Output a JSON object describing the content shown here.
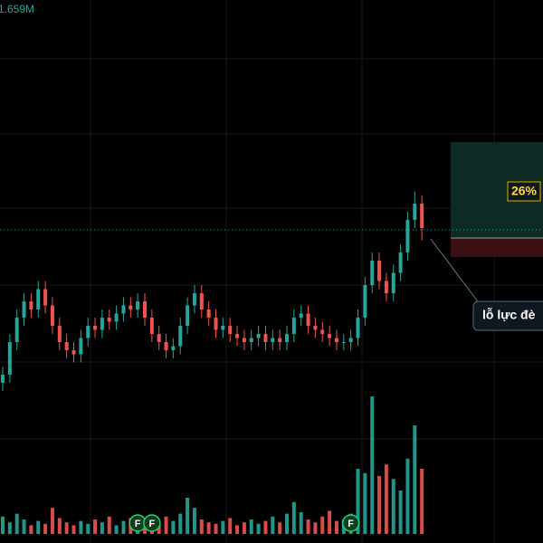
{
  "legend_value": "1.659M",
  "chart_data": {
    "type": "candlestick",
    "open": [
      6,
      8,
      16,
      22,
      26,
      24,
      29,
      25,
      20,
      16,
      14,
      13,
      17,
      20,
      19,
      22,
      21,
      23,
      25,
      24,
      26,
      22,
      18,
      16,
      14,
      15,
      20,
      25,
      28,
      24,
      22,
      19,
      20,
      18,
      17,
      16,
      17,
      18,
      16,
      17,
      16,
      18,
      22,
      23,
      20,
      19,
      18,
      17,
      16,
      16,
      17,
      22,
      30,
      36,
      31,
      28,
      33,
      38,
      46,
      50
    ],
    "high": [
      10,
      18,
      24,
      28,
      28,
      31,
      31,
      27,
      22,
      18,
      16,
      19,
      22,
      22,
      24,
      24,
      25,
      27,
      27,
      28,
      28,
      24,
      20,
      18,
      17,
      22,
      27,
      30,
      30,
      26,
      24,
      22,
      22,
      20,
      19,
      19,
      20,
      20,
      19,
      19,
      20,
      24,
      25,
      25,
      22,
      21,
      20,
      19,
      18,
      19,
      24,
      32,
      38,
      38,
      33,
      35,
      40,
      48,
      53,
      52
    ],
    "low": [
      4,
      6,
      14,
      20,
      22,
      22,
      23,
      18,
      14,
      12,
      11,
      11,
      15,
      17,
      17,
      19,
      19,
      21,
      22,
      22,
      20,
      16,
      14,
      12,
      12,
      13,
      18,
      23,
      22,
      20,
      17,
      17,
      16,
      15,
      14,
      14,
      15,
      14,
      14,
      14,
      14,
      16,
      20,
      18,
      17,
      16,
      15,
      14,
      14,
      14,
      15,
      20,
      28,
      29,
      26,
      26,
      31,
      36,
      44,
      41
    ],
    "close": [
      8,
      16,
      22,
      26,
      24,
      29,
      25,
      20,
      16,
      14,
      13,
      17,
      20,
      19,
      22,
      21,
      23,
      25,
      24,
      26,
      22,
      18,
      16,
      14,
      15,
      20,
      25,
      28,
      24,
      22,
      19,
      20,
      18,
      17,
      16,
      17,
      18,
      16,
      17,
      16,
      18,
      22,
      23,
      20,
      19,
      18,
      17,
      16,
      16,
      17,
      22,
      30,
      36,
      31,
      28,
      33,
      38,
      46,
      50,
      44
    ],
    "volume": [
      12,
      8,
      14,
      10,
      6,
      9,
      7,
      18,
      11,
      8,
      6,
      9,
      7,
      10,
      8,
      12,
      6,
      9,
      11,
      7,
      10,
      8,
      6,
      12,
      9,
      14,
      25,
      18,
      10,
      8,
      7,
      9,
      11,
      6,
      8,
      10,
      7,
      9,
      12,
      8,
      14,
      22,
      15,
      10,
      8,
      12,
      16,
      9,
      10,
      14,
      45,
      42,
      95,
      40,
      48,
      38,
      30,
      52,
      75,
      45
    ],
    "ylim": [
      0,
      100
    ],
    "volume_lim": [
      0,
      100
    ],
    "up_color": "#26a69a",
    "down_color": "#ef5350"
  },
  "events": [
    {
      "label": "F",
      "index": 19
    },
    {
      "label": "F",
      "index": 21
    },
    {
      "label": "F",
      "index": 49
    }
  ],
  "position": {
    "label": "26%"
  },
  "callout": "lỗ lực đè"
}
